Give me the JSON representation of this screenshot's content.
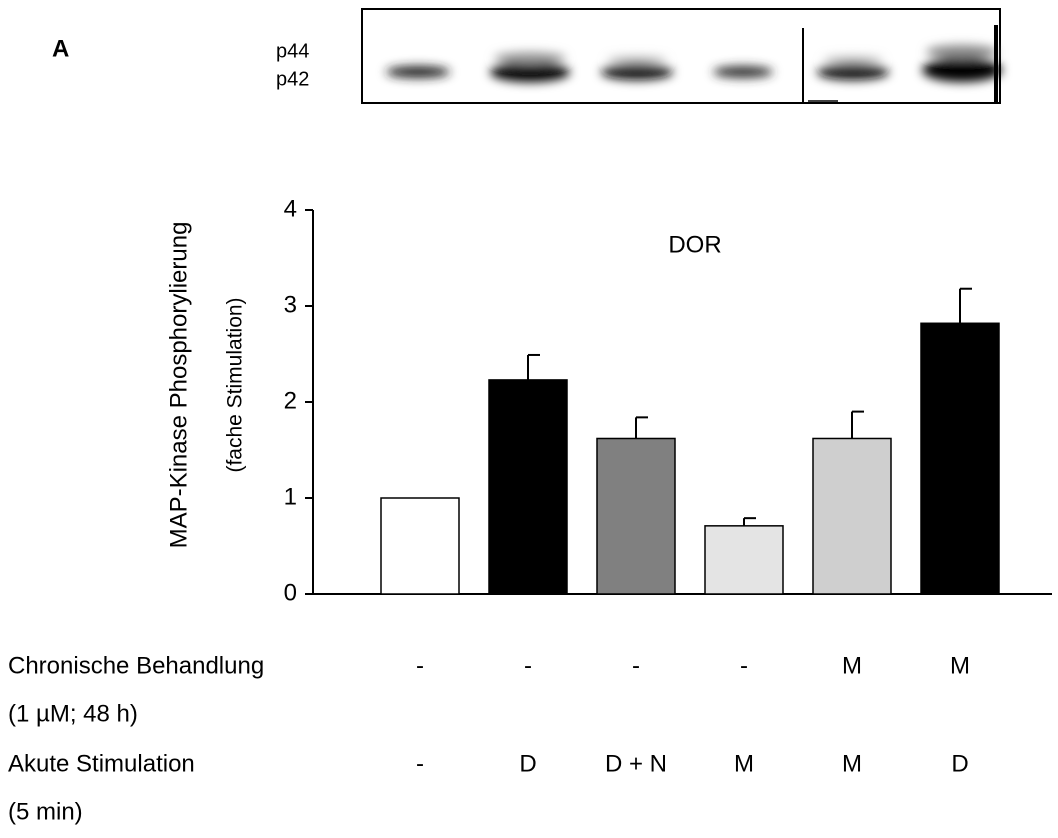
{
  "panel_label": "A",
  "blot": {
    "bands": [
      "p44",
      "p42"
    ]
  },
  "chart_data": {
    "type": "bar",
    "annotation": "DOR",
    "y_label": "MAP-Kinase Phosphorylierung",
    "y_sublabel": "(fache Stimulation)",
    "values": [
      1.0,
      2.23,
      1.62,
      0.71,
      1.62,
      2.82
    ],
    "errors": [
      0,
      0.26,
      0.22,
      0.08,
      0.28,
      0.36
    ],
    "colors": [
      "#ffffff",
      "#000000",
      "#808080",
      "#e4e4e4",
      "#cfcfcf",
      "#000000"
    ],
    "ylim": [
      0,
      4
    ],
    "yticks": [
      0,
      1,
      2,
      3,
      4
    ],
    "rows": [
      {
        "label": "Chronische Behandlung",
        "note": "(1 µM; 48 h)",
        "values": [
          "-",
          "-",
          "-",
          "-",
          "M",
          "M"
        ]
      },
      {
        "label": "Akute Stimulation",
        "note": "(5 min)",
        "values": [
          "-",
          "D",
          "D + N",
          "M",
          "M",
          "D"
        ]
      }
    ]
  }
}
